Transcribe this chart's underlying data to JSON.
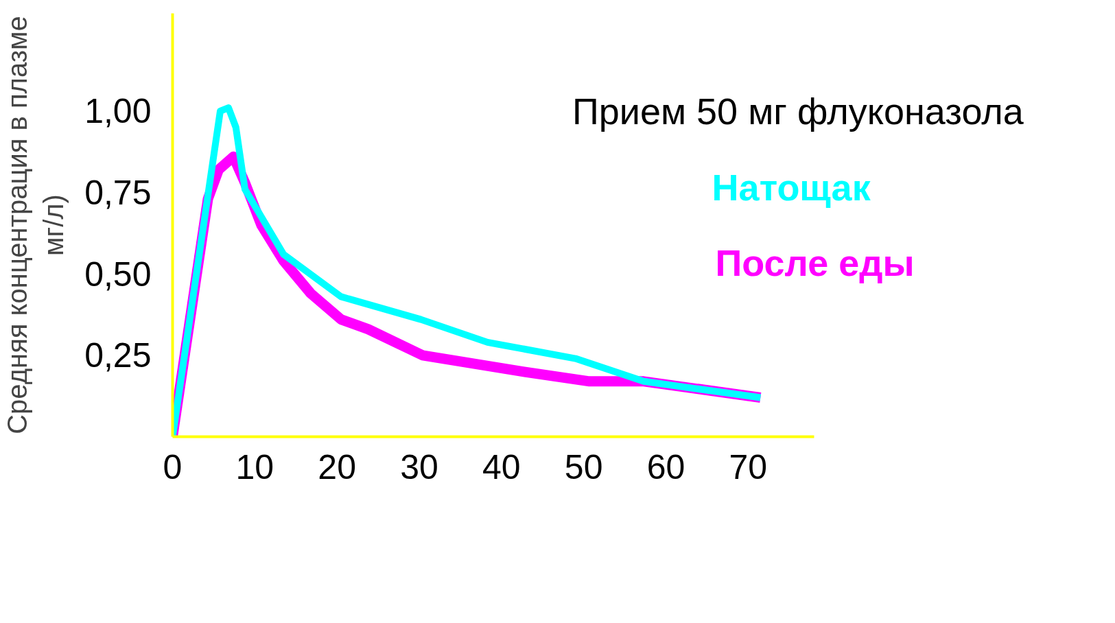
{
  "chart_data": {
    "type": "line",
    "title": "Прием 50 мг флуконазола",
    "ylabel": "Средняя концентрация в плазме мг/л)",
    "xlim": [
      0,
      78
    ],
    "xticks": [
      0,
      10,
      20,
      30,
      40,
      50,
      60,
      70
    ],
    "ylim": [
      0,
      1.3
    ],
    "yticks": [
      {
        "value": 0.25,
        "label": "0,25"
      },
      {
        "value": 0.5,
        "label": "0,50"
      },
      {
        "value": 0.75,
        "label": "0,75"
      },
      {
        "value": 1.0,
        "label": "1,00"
      }
    ],
    "grid": false,
    "legend": "right",
    "series": [
      {
        "name": "Натощак",
        "color": "#00ffff",
        "x": [
          0,
          5.8,
          6.8,
          7.7,
          8.8,
          13.5,
          20.5,
          30.2,
          38.3,
          49.0,
          57.3,
          71.5
        ],
        "values": [
          0,
          1.0,
          1.01,
          0.95,
          0.76,
          0.56,
          0.43,
          0.36,
          0.29,
          0.24,
          0.17,
          0.12
        ]
      },
      {
        "name": "После еды",
        "color": "#ff00ff",
        "x": [
          0,
          4.3,
          5.6,
          7.4,
          8.8,
          10.8,
          13.5,
          16.8,
          20.5,
          23.8,
          30.4,
          42.6,
          50.7,
          57.3,
          71.5
        ],
        "values": [
          0,
          0.73,
          0.82,
          0.86,
          0.78,
          0.65,
          0.54,
          0.44,
          0.36,
          0.33,
          0.25,
          0.2,
          0.17,
          0.17,
          0.12
        ]
      }
    ]
  }
}
